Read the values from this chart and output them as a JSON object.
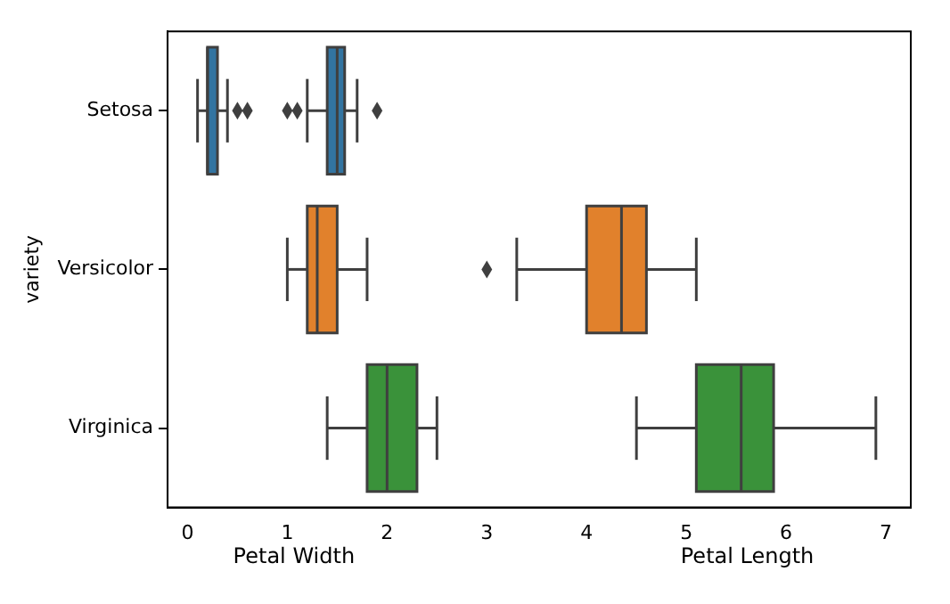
{
  "chart_data": {
    "type": "box",
    "orientation": "horizontal",
    "ylabel": "variety",
    "categories": [
      "Setosa",
      "Versicolor",
      "Virginica"
    ],
    "xlim": [
      -0.2,
      7.25
    ],
    "xticks": [
      0,
      1,
      2,
      3,
      4,
      5,
      6,
      7
    ],
    "annotations": [
      "Petal Width",
      "Petal Length"
    ],
    "grid": false,
    "legend": false,
    "marker": "diamond",
    "series": [
      {
        "colors": [
          "#3274a1",
          "#e1812c",
          "#3a923a"
        ],
        "boxes": [
          {
            "low": 0.1,
            "q1": 0.2,
            "median": 0.2,
            "q3": 0.3,
            "high": 0.4,
            "outliers": [
              0.5,
              0.6
            ]
          },
          {
            "low": 1.0,
            "q1": 1.2,
            "median": 1.3,
            "q3": 1.5,
            "high": 1.8
          },
          {
            "low": 1.4,
            "q1": 1.8,
            "median": 2.0,
            "q3": 2.3,
            "high": 2.5
          }
        ]
      },
      {
        "colors": [
          "#3274a1",
          "#e1812c",
          "#3a923a"
        ],
        "boxes": [
          {
            "low": 1.2,
            "q1": 1.4,
            "median": 1.5,
            "q3": 1.575,
            "high": 1.7,
            "outliers": [
              1.0,
              1.1,
              1.9
            ]
          },
          {
            "low": 3.3,
            "q1": 4.0,
            "median": 4.35,
            "q3": 4.6,
            "high": 5.1,
            "outliers": [
              3.0
            ]
          },
          {
            "low": 4.5,
            "q1": 5.1,
            "median": 5.55,
            "q3": 5.875,
            "high": 6.9
          }
        ]
      }
    ]
  }
}
